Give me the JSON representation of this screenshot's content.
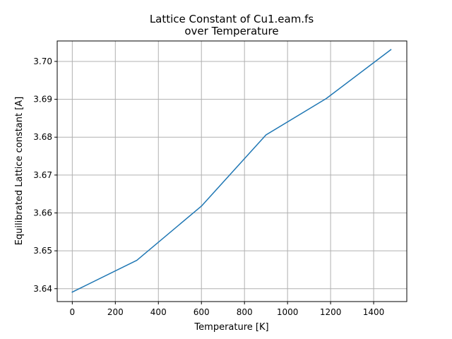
{
  "chart_data": {
    "type": "line",
    "title": "Lattice Constant of Cu1.eam.fs\nover Temperature",
    "title_lines": [
      "Lattice Constant of Cu1.eam.fs",
      "over Temperature"
    ],
    "xlabel": "Temperature [K]",
    "ylabel": "Equilibrated Lattice constant [A]",
    "xlim": [
      -70,
      1554
    ],
    "ylim": [
      3.6366,
      3.7054
    ],
    "xticks": [
      0,
      200,
      400,
      600,
      800,
      1000,
      1200,
      1400
    ],
    "yticks": [
      3.64,
      3.65,
      3.66,
      3.67,
      3.68,
      3.69,
      3.7
    ],
    "xtick_labels": [
      "0",
      "200",
      "400",
      "600",
      "800",
      "1000",
      "1200",
      "1400"
    ],
    "ytick_labels": [
      "3.64",
      "3.65",
      "3.66",
      "3.67",
      "3.68",
      "3.69",
      "3.70"
    ],
    "grid": true,
    "series": [
      {
        "color": "#1f77b4",
        "x": [
          0,
          300,
          600,
          900,
          1180,
          1480
        ],
        "y": [
          3.6391,
          3.6475,
          3.6618,
          3.6806,
          3.6902,
          3.7031
        ]
      }
    ]
  }
}
